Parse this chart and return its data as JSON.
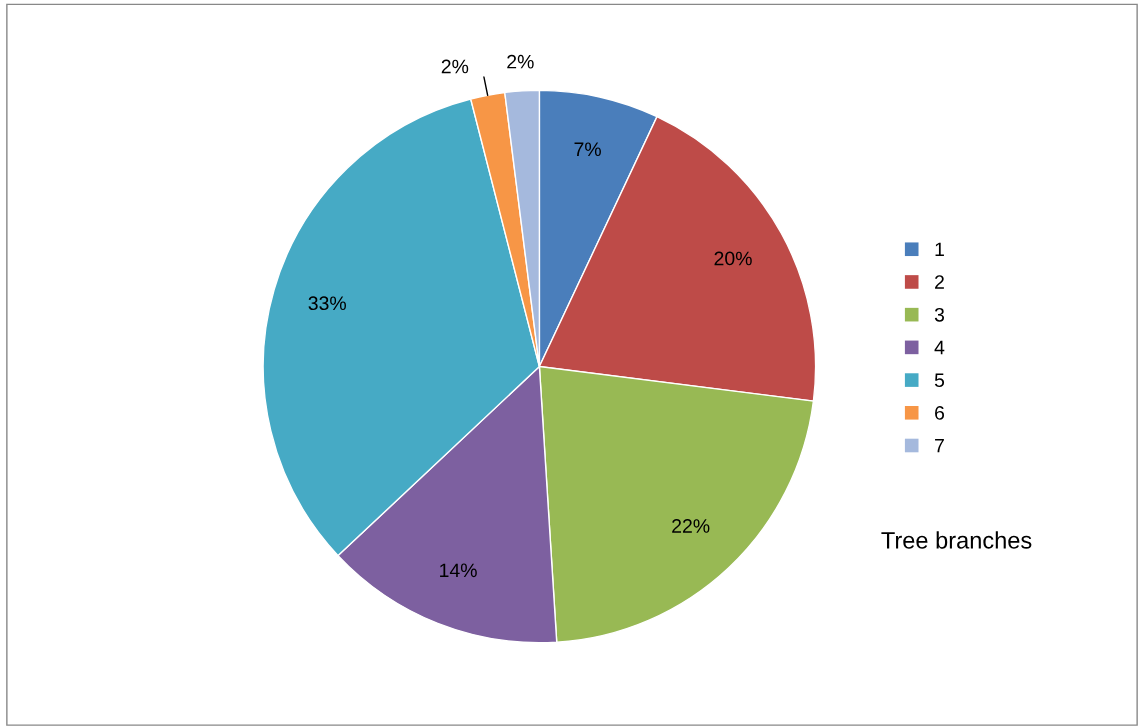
{
  "chart_data": {
    "type": "pie",
    "categories": [
      "1",
      "2",
      "3",
      "4",
      "5",
      "6",
      "7"
    ],
    "values": [
      7,
      20,
      22,
      14,
      33,
      2,
      2
    ],
    "colors": [
      "#4a7ebb",
      "#be4b48",
      "#98b954",
      "#7d60a0",
      "#46aac5",
      "#f79646",
      "#a5b9dd"
    ],
    "value_labels": [
      "7%",
      "20%",
      "22%",
      "14%",
      "33%",
      "2%",
      "2%"
    ],
    "legend": "right",
    "annotations": [
      "Tree branches"
    ]
  }
}
